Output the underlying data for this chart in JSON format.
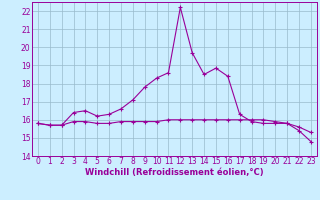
{
  "xlabel": "Windchill (Refroidissement éolien,°C)",
  "background_color": "#cceeff",
  "line_color": "#990099",
  "grid_color": "#99bbcc",
  "xlim_min": -0.5,
  "xlim_max": 23.5,
  "ylim_min": 14,
  "ylim_max": 22.5,
  "yticks": [
    14,
    15,
    16,
    17,
    18,
    19,
    20,
    21,
    22
  ],
  "xticks": [
    0,
    1,
    2,
    3,
    4,
    5,
    6,
    7,
    8,
    9,
    10,
    11,
    12,
    13,
    14,
    15,
    16,
    17,
    18,
    19,
    20,
    21,
    22,
    23
  ],
  "hours": [
    0,
    1,
    2,
    3,
    4,
    5,
    6,
    7,
    8,
    9,
    10,
    11,
    12,
    13,
    14,
    15,
    16,
    17,
    18,
    19,
    20,
    21,
    22,
    23
  ],
  "windchill": [
    15.8,
    15.7,
    15.7,
    16.4,
    16.5,
    16.2,
    16.3,
    16.6,
    17.1,
    17.8,
    18.3,
    18.6,
    22.2,
    19.7,
    18.5,
    18.85,
    18.4,
    16.3,
    15.9,
    15.8,
    15.8,
    15.8,
    15.4,
    14.8
  ],
  "temperature": [
    15.8,
    15.7,
    15.7,
    15.9,
    15.9,
    15.8,
    15.8,
    15.9,
    15.9,
    15.9,
    15.9,
    16.0,
    16.0,
    16.0,
    16.0,
    16.0,
    16.0,
    16.0,
    16.0,
    16.0,
    15.9,
    15.8,
    15.6,
    15.3
  ],
  "tick_fontsize": 5.5,
  "xlabel_fontsize": 6.0
}
